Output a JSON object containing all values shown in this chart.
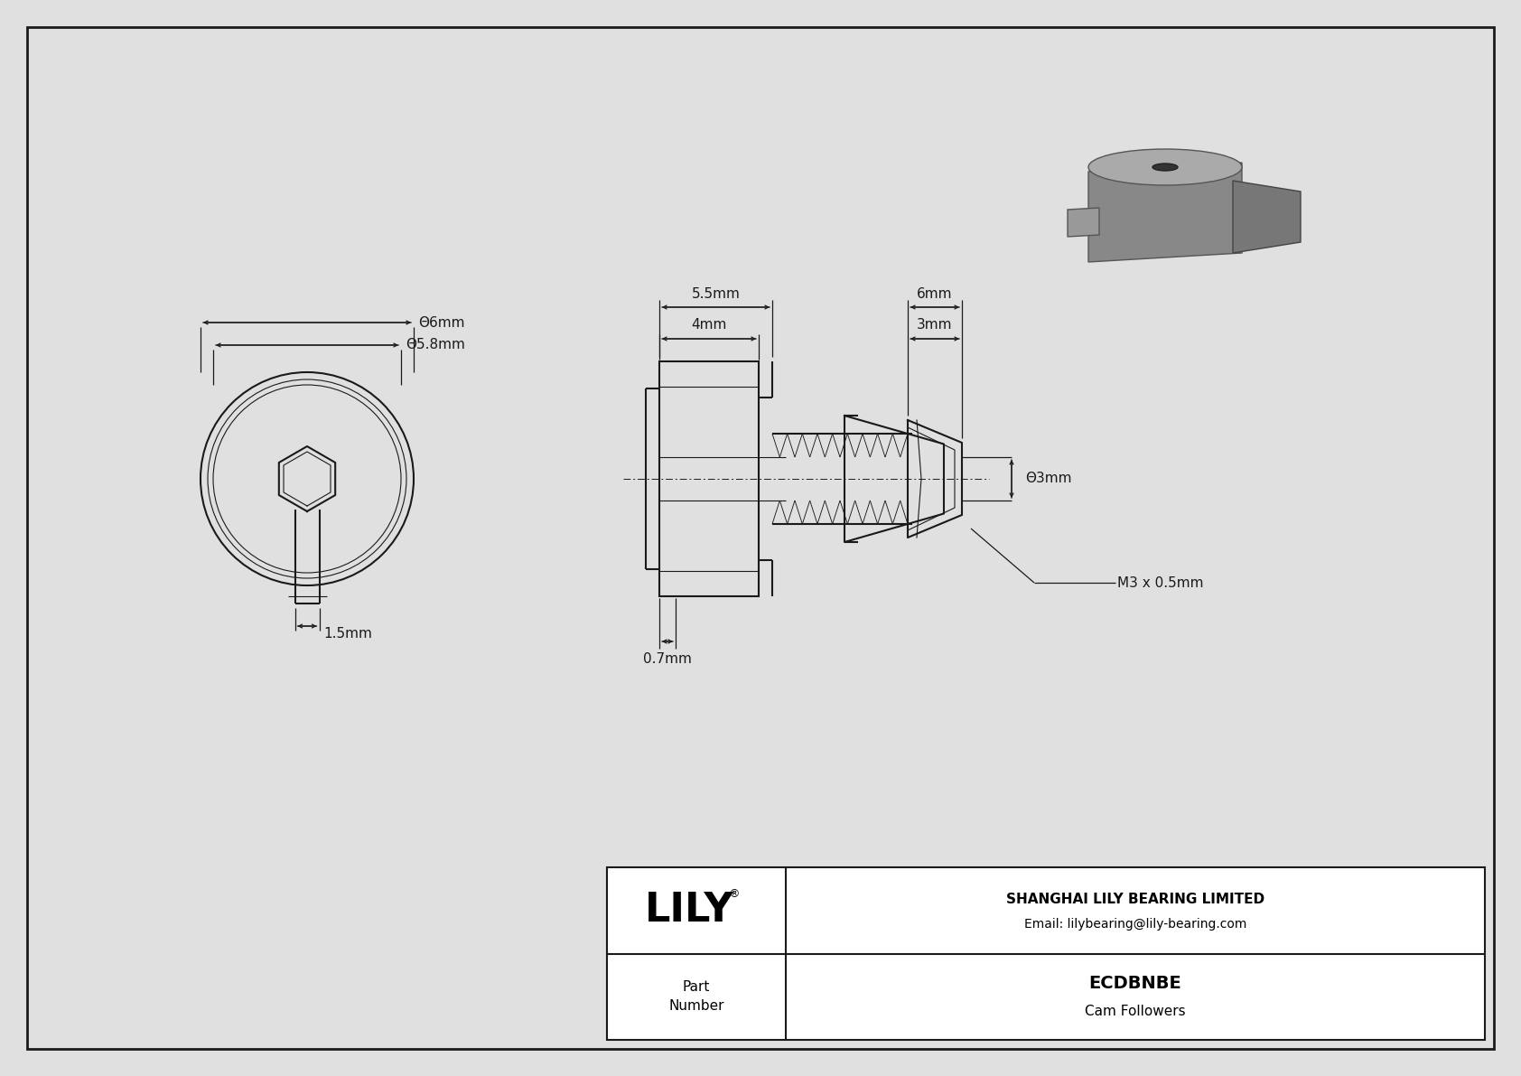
{
  "bg_color": "#e0e0e0",
  "drawing_bg": "#f5f5f5",
  "line_color": "#1a1a1a",
  "dim_color": "#1a1a1a",
  "title_block": {
    "company": "SHANGHAI LILY BEARING LIMITED",
    "email": "Email: lilybearing@lily-bearing.com",
    "part_number": "ECDBNBE",
    "category": "Cam Followers",
    "logo": "LILY"
  },
  "dims": {
    "phi6": "Θ6mm",
    "phi58": "Θ5.8mm",
    "d55": "5.5mm",
    "d6": "6mm",
    "d4": "4mm",
    "d3a": "3mm",
    "d3b": "Θ3mm",
    "d15": "1.5mm",
    "d07": "0.7mm",
    "m3": "M3 x 0.5mm"
  }
}
